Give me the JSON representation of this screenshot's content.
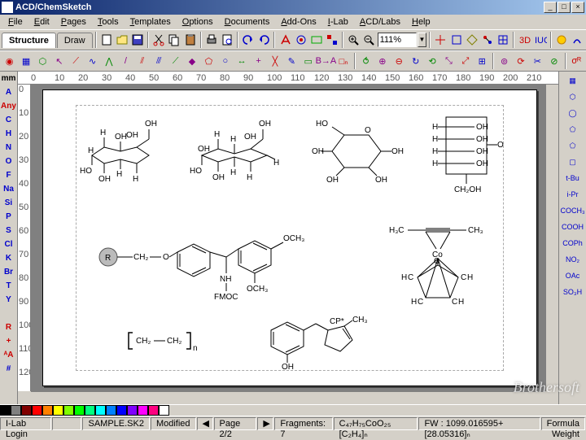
{
  "titlebar": {
    "app_name": "ACD/ChemSketch",
    "min": "_",
    "max": "□",
    "close": "×"
  },
  "menu": [
    "File",
    "Edit",
    "Pages",
    "Tools",
    "Templates",
    "Options",
    "Documents",
    "Add-Ons",
    "I-Lab",
    "ACD/Labs",
    "Help"
  ],
  "tabs": {
    "structure": "Structure",
    "draw": "Draw"
  },
  "zoom": "111%",
  "left_palette": [
    {
      "t": "mm",
      "c": "#000"
    },
    {
      "t": "A",
      "c": "#0000cc"
    },
    {
      "t": "Any",
      "c": "#cc0000"
    },
    {
      "t": "C",
      "c": "#0000cc"
    },
    {
      "t": "H",
      "c": "#0000cc"
    },
    {
      "t": "N",
      "c": "#0000cc"
    },
    {
      "t": "O",
      "c": "#0000cc"
    },
    {
      "t": "F",
      "c": "#0000cc"
    },
    {
      "t": "Na",
      "c": "#0000cc"
    },
    {
      "t": "Si",
      "c": "#0000cc"
    },
    {
      "t": "P",
      "c": "#0000cc"
    },
    {
      "t": "S",
      "c": "#0000cc"
    },
    {
      "t": "Cl",
      "c": "#0000cc"
    },
    {
      "t": "K",
      "c": "#0000cc"
    },
    {
      "t": "Br",
      "c": "#0000cc"
    },
    {
      "t": "T",
      "c": "#0000cc"
    },
    {
      "t": "Y",
      "c": "#0000cc"
    },
    {
      "t": "",
      "c": "#000"
    },
    {
      "t": "R",
      "c": "#cc0000"
    },
    {
      "t": "+",
      "c": "#cc0000"
    },
    {
      "t": "ᴬA",
      "c": "#cc0000"
    },
    {
      "t": "#",
      "c": "#0000cc"
    }
  ],
  "right_palette": [
    {
      "t": "▦",
      "c": "#0000cc"
    },
    {
      "t": "⬡",
      "c": "#0000cc"
    },
    {
      "t": "◯",
      "c": "#0000cc"
    },
    {
      "t": "⬠",
      "c": "#0000cc"
    },
    {
      "t": "⬠",
      "c": "#0000cc"
    },
    {
      "t": "▢",
      "c": "#0000cc"
    },
    {
      "t": "t-Bu",
      "c": "#0000cc"
    },
    {
      "t": "i-Pr",
      "c": "#0000cc"
    },
    {
      "t": "COCH₃",
      "c": "#0000cc"
    },
    {
      "t": "COOH",
      "c": "#0000cc"
    },
    {
      "t": "COPh",
      "c": "#0000cc"
    },
    {
      "t": "NO₂",
      "c": "#0000cc"
    },
    {
      "t": "OAc",
      "c": "#0000cc"
    },
    {
      "t": "SO₃H",
      "c": "#0000cc"
    }
  ],
  "ruler_h": [
    "0",
    "10",
    "20",
    "30",
    "40",
    "50",
    "60",
    "70",
    "80",
    "90",
    "100",
    "110",
    "120",
    "130",
    "140",
    "150",
    "160",
    "170",
    "180",
    "190",
    "200",
    "210"
  ],
  "ruler_v": [
    "0",
    "10",
    "20",
    "30",
    "40",
    "50",
    "60",
    "70",
    "80",
    "90",
    "100",
    "110",
    "120"
  ],
  "colors": [
    "#000000",
    "#808080",
    "#800000",
    "#ff0000",
    "#ff8000",
    "#ffff00",
    "#80ff00",
    "#00ff00",
    "#00ff80",
    "#00ffff",
    "#0080ff",
    "#0000ff",
    "#8000ff",
    "#ff00ff",
    "#ff0080",
    "#ffffff"
  ],
  "status": {
    "ilab": "I-Lab Login",
    "file": "SAMPLE.SK2",
    "modified": "Modified",
    "page": "Page 2/2",
    "fragments": "Fragments: 7",
    "formula": "C₄₇H₇₅CoO₂₅ [C₂H₄]ₙ",
    "fw": "FW : 1099.016595+[28.05316]ₙ",
    "mode": "Formula Weight"
  },
  "watermark": "Brothersoft",
  "structures": {
    "s1": {
      "labels": [
        "OH",
        "H",
        "OH",
        "HO",
        "H",
        "H",
        "OH",
        "OH",
        "H"
      ]
    },
    "s2": {
      "labels": [
        "OH",
        "H",
        "H",
        "HO",
        "OH",
        "H",
        "H",
        "OH",
        "H",
        "OH"
      ]
    },
    "s3": {
      "labels": [
        "HO",
        "O",
        "OH",
        "OH",
        "OH",
        "OH"
      ]
    },
    "s4": {
      "labels": [
        "H",
        "OH",
        "H",
        "OH",
        "H",
        "OH",
        "H",
        "OH",
        "O",
        "CH₂OH"
      ]
    },
    "s5": {
      "labels": [
        "R",
        "CH₂",
        "O",
        "OCH₃",
        "OCH₃",
        "NH",
        "FMOC"
      ]
    },
    "s6": {
      "labels": [
        "H₃C",
        "C≡C",
        "CH₃",
        "Co",
        "C",
        "H",
        "C",
        "H",
        "C",
        "H",
        "C",
        "H",
        "C",
        "H"
      ]
    },
    "s7": {
      "labels": [
        "CH₂",
        "CH₂",
        "n"
      ]
    },
    "s8": {
      "labels": [
        "OH",
        "CP*",
        "CH₃"
      ]
    }
  }
}
